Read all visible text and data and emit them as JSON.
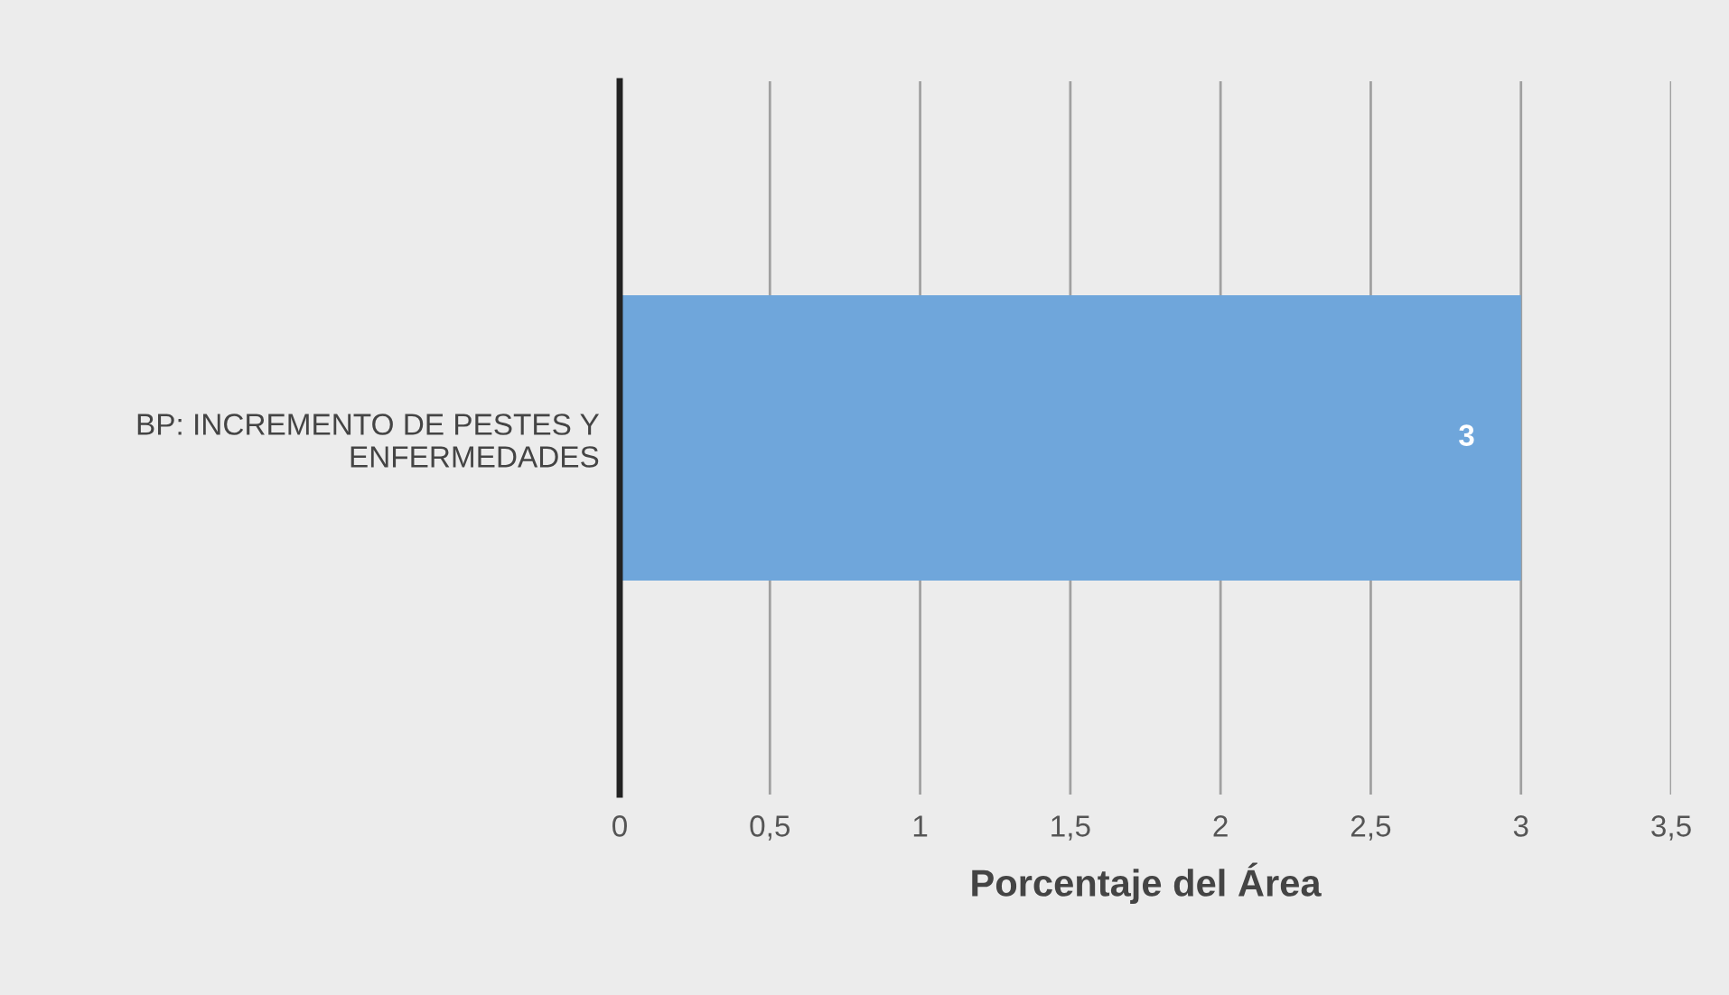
{
  "chart_data": {
    "type": "bar",
    "orientation": "horizontal",
    "categories": [
      "BP: INCREMENTO DE PESTES Y\nENFERMEDADES"
    ],
    "series": [
      {
        "color": "#6fa6db",
        "values": [
          3
        ]
      }
    ],
    "xlabel": "Porcentaje del Área",
    "xlim": [
      0,
      3.5
    ],
    "xticks": [
      0,
      {
        "value": 0.5,
        "label": "0,5"
      },
      1,
      {
        "value": 1.5,
        "label": "1,5"
      },
      2,
      {
        "value": 2.5,
        "label": "2,5"
      },
      3,
      {
        "value": 3.5,
        "label": "3,5"
      }
    ],
    "grid": "x",
    "data_labels": true
  }
}
